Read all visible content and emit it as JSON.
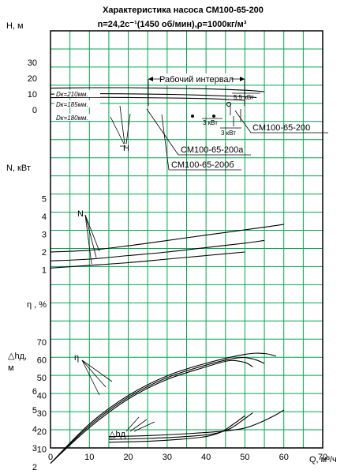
{
  "chart_data": {
    "type": "line",
    "title_line1": "Характеристика насоса СМ100-65-200",
    "title_line2": "n=24,2c⁻¹(1450 об/мин),ρ=1000кг/м³",
    "x_axis": {
      "label": "Q, м³/ч",
      "ticks": [
        "0",
        "10",
        "20",
        "30",
        "40",
        "50",
        "60",
        "70"
      ],
      "xlim": [
        0,
        70
      ]
    },
    "panels": [
      {
        "name": "H",
        "ylabel": "H, м",
        "ticks": [
          "30",
          "20",
          "10",
          "0"
        ],
        "ylim": [
          0,
          30
        ],
        "series": [
          {
            "name": "Dк=210мм.",
            "x": [
              0,
              10,
              20,
              30,
              40,
              50,
              55
            ],
            "y": [
              13.7,
              14.0,
              14.0,
              13.7,
              13.3,
              12.4,
              11.5
            ]
          },
          {
            "name": "Dк=185мм.",
            "x": [
              0,
              10,
              20,
              30,
              40,
              48,
              53
            ],
            "y": [
              9.9,
              10.2,
              10.1,
              9.8,
              9.2,
              8.5,
              7.8
            ]
          },
          {
            "name": "Dк=180мм.",
            "x": [
              0,
              10,
              20,
              30,
              40,
              46,
              50
            ],
            "y": [
              7.7,
              7.9,
              7.8,
              7.5,
              7.1,
              6.5,
              6.0
            ]
          }
        ]
      },
      {
        "name": "N",
        "ylabel": "N, кВт",
        "ticks": [
          "5",
          "4",
          "3",
          "2",
          "1"
        ],
        "ylim": [
          0,
          5
        ],
        "series": [
          {
            "name": "Dк=210мм.",
            "x": [
              0,
              10,
              20,
              30,
              40,
              50,
              60
            ],
            "y": [
              2.0,
              2.1,
              2.35,
              2.65,
              2.95,
              3.25,
              3.55
            ]
          },
          {
            "name": "Dк=185мм.",
            "x": [
              0,
              10,
              20,
              30,
              40,
              50,
              55
            ],
            "y": [
              1.5,
              1.6,
              1.8,
              2.0,
              2.25,
              2.5,
              2.65
            ]
          },
          {
            "name": "Dк=180мм.",
            "x": [
              0,
              10,
              20,
              30,
              40,
              50
            ],
            "y": [
              1.1,
              1.25,
              1.4,
              1.6,
              1.8,
              2.0
            ]
          }
        ]
      },
      {
        "name": "eta",
        "ylabel": "η , %",
        "ticks": [
          "70",
          "60",
          "50",
          "40",
          "30",
          "20",
          "10"
        ],
        "ylim": [
          0,
          70
        ],
        "series": [
          {
            "name": "Dк=210мм.",
            "x": [
              0,
              10,
              20,
              30,
              40,
              50,
              55,
              58
            ],
            "y": [
              2,
              24,
              40,
              51,
              58,
              63,
              63.5,
              62
            ]
          },
          {
            "name": "Dк=185мм.",
            "x": [
              0,
              10,
              20,
              30,
              40,
              48,
              52,
              55
            ],
            "y": [
              2,
              23,
              39,
              50,
              57,
              61,
              60.5,
              58
            ]
          },
          {
            "name": "Dк=180мм.",
            "x": [
              0,
              10,
              20,
              30,
              40,
              46,
              50,
              52
            ],
            "y": [
              2,
              22,
              38,
              49,
              56,
              59.5,
              58.5,
              56
            ]
          }
        ]
      },
      {
        "name": "dh",
        "ylabel_line1": "△hд,",
        "ylabel_line2": "м",
        "ticks": [
          "6",
          "5",
          "4",
          "3",
          "2"
        ],
        "ylim": [
          2,
          6
        ],
        "series": [
          {
            "name": "Dк=210мм.",
            "x": [
              15,
              25,
              35,
              45,
              50,
              54,
              58,
              60
            ],
            "y": [
              3.6,
              3.65,
              3.75,
              3.9,
              4.05,
              4.35,
              4.75,
              5.0
            ]
          },
          {
            "name": "Dк=185мм.",
            "x": [
              15,
              25,
              35,
              42,
              46,
              49,
              52
            ],
            "y": [
              3.45,
              3.5,
              3.6,
              3.75,
              4.0,
              4.4,
              4.85
            ]
          },
          {
            "name": "Dк=180мм.",
            "x": [
              15,
              25,
              33,
              40,
              44,
              47,
              50
            ],
            "y": [
              3.3,
              3.35,
              3.45,
              3.6,
              3.85,
              4.25,
              4.7
            ]
          }
        ]
      }
    ],
    "annotations": {
      "working_range": "Рабочий интервал",
      "power_55": "5,5 кВт",
      "power_3a": "3 кВт",
      "power_3b": "3 кВт",
      "model_main": "СМ100-65-200",
      "model_a": "СМ100-65-200а",
      "model_b": "СМ100-65-200б",
      "curve_H": "H",
      "curve_N": "N",
      "curve_eta": "η",
      "curve_dh": "△hд",
      "dk210": "Dк=210мм.",
      "dk185": "Dк=185мм.",
      "dk180": "Dк=180мм."
    },
    "grid": true
  }
}
